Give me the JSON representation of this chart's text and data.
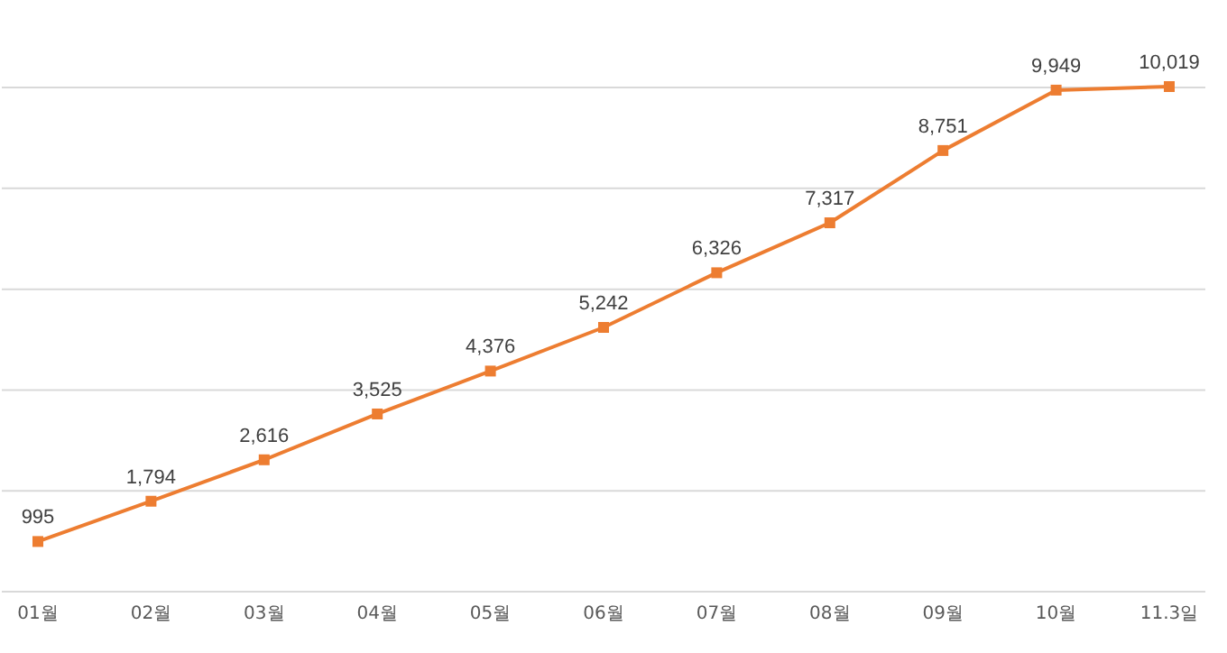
{
  "chart_data": {
    "type": "line",
    "categories": [
      "01월",
      "02월",
      "03월",
      "04월",
      "05월",
      "06월",
      "07월",
      "08월",
      "09월",
      "10월",
      "11.3일"
    ],
    "series": [
      {
        "color": "#ed7d31",
        "values": [
          995,
          1794,
          2616,
          3525,
          4376,
          5242,
          6326,
          7317,
          8751,
          9949,
          10019
        ],
        "value_labels": [
          "995",
          "1,794",
          "2,616",
          "3,525",
          "4,376",
          "5,242",
          "6,326",
          "7,317",
          "8,751",
          "9,949",
          "10,019"
        ]
      }
    ],
    "yticks": [
      {
        "value": 0,
        "label": null
      },
      {
        "value": 2000,
        "label": null
      },
      {
        "value": 4000,
        "label": null
      },
      {
        "value": 6000,
        "label": null
      },
      {
        "value": 8000,
        "label": null
      },
      {
        "value": 10000,
        "label": null
      }
    ],
    "tick_labels": "x",
    "grid": "y",
    "legend": false,
    "marker": "square",
    "line_style": "solid"
  }
}
